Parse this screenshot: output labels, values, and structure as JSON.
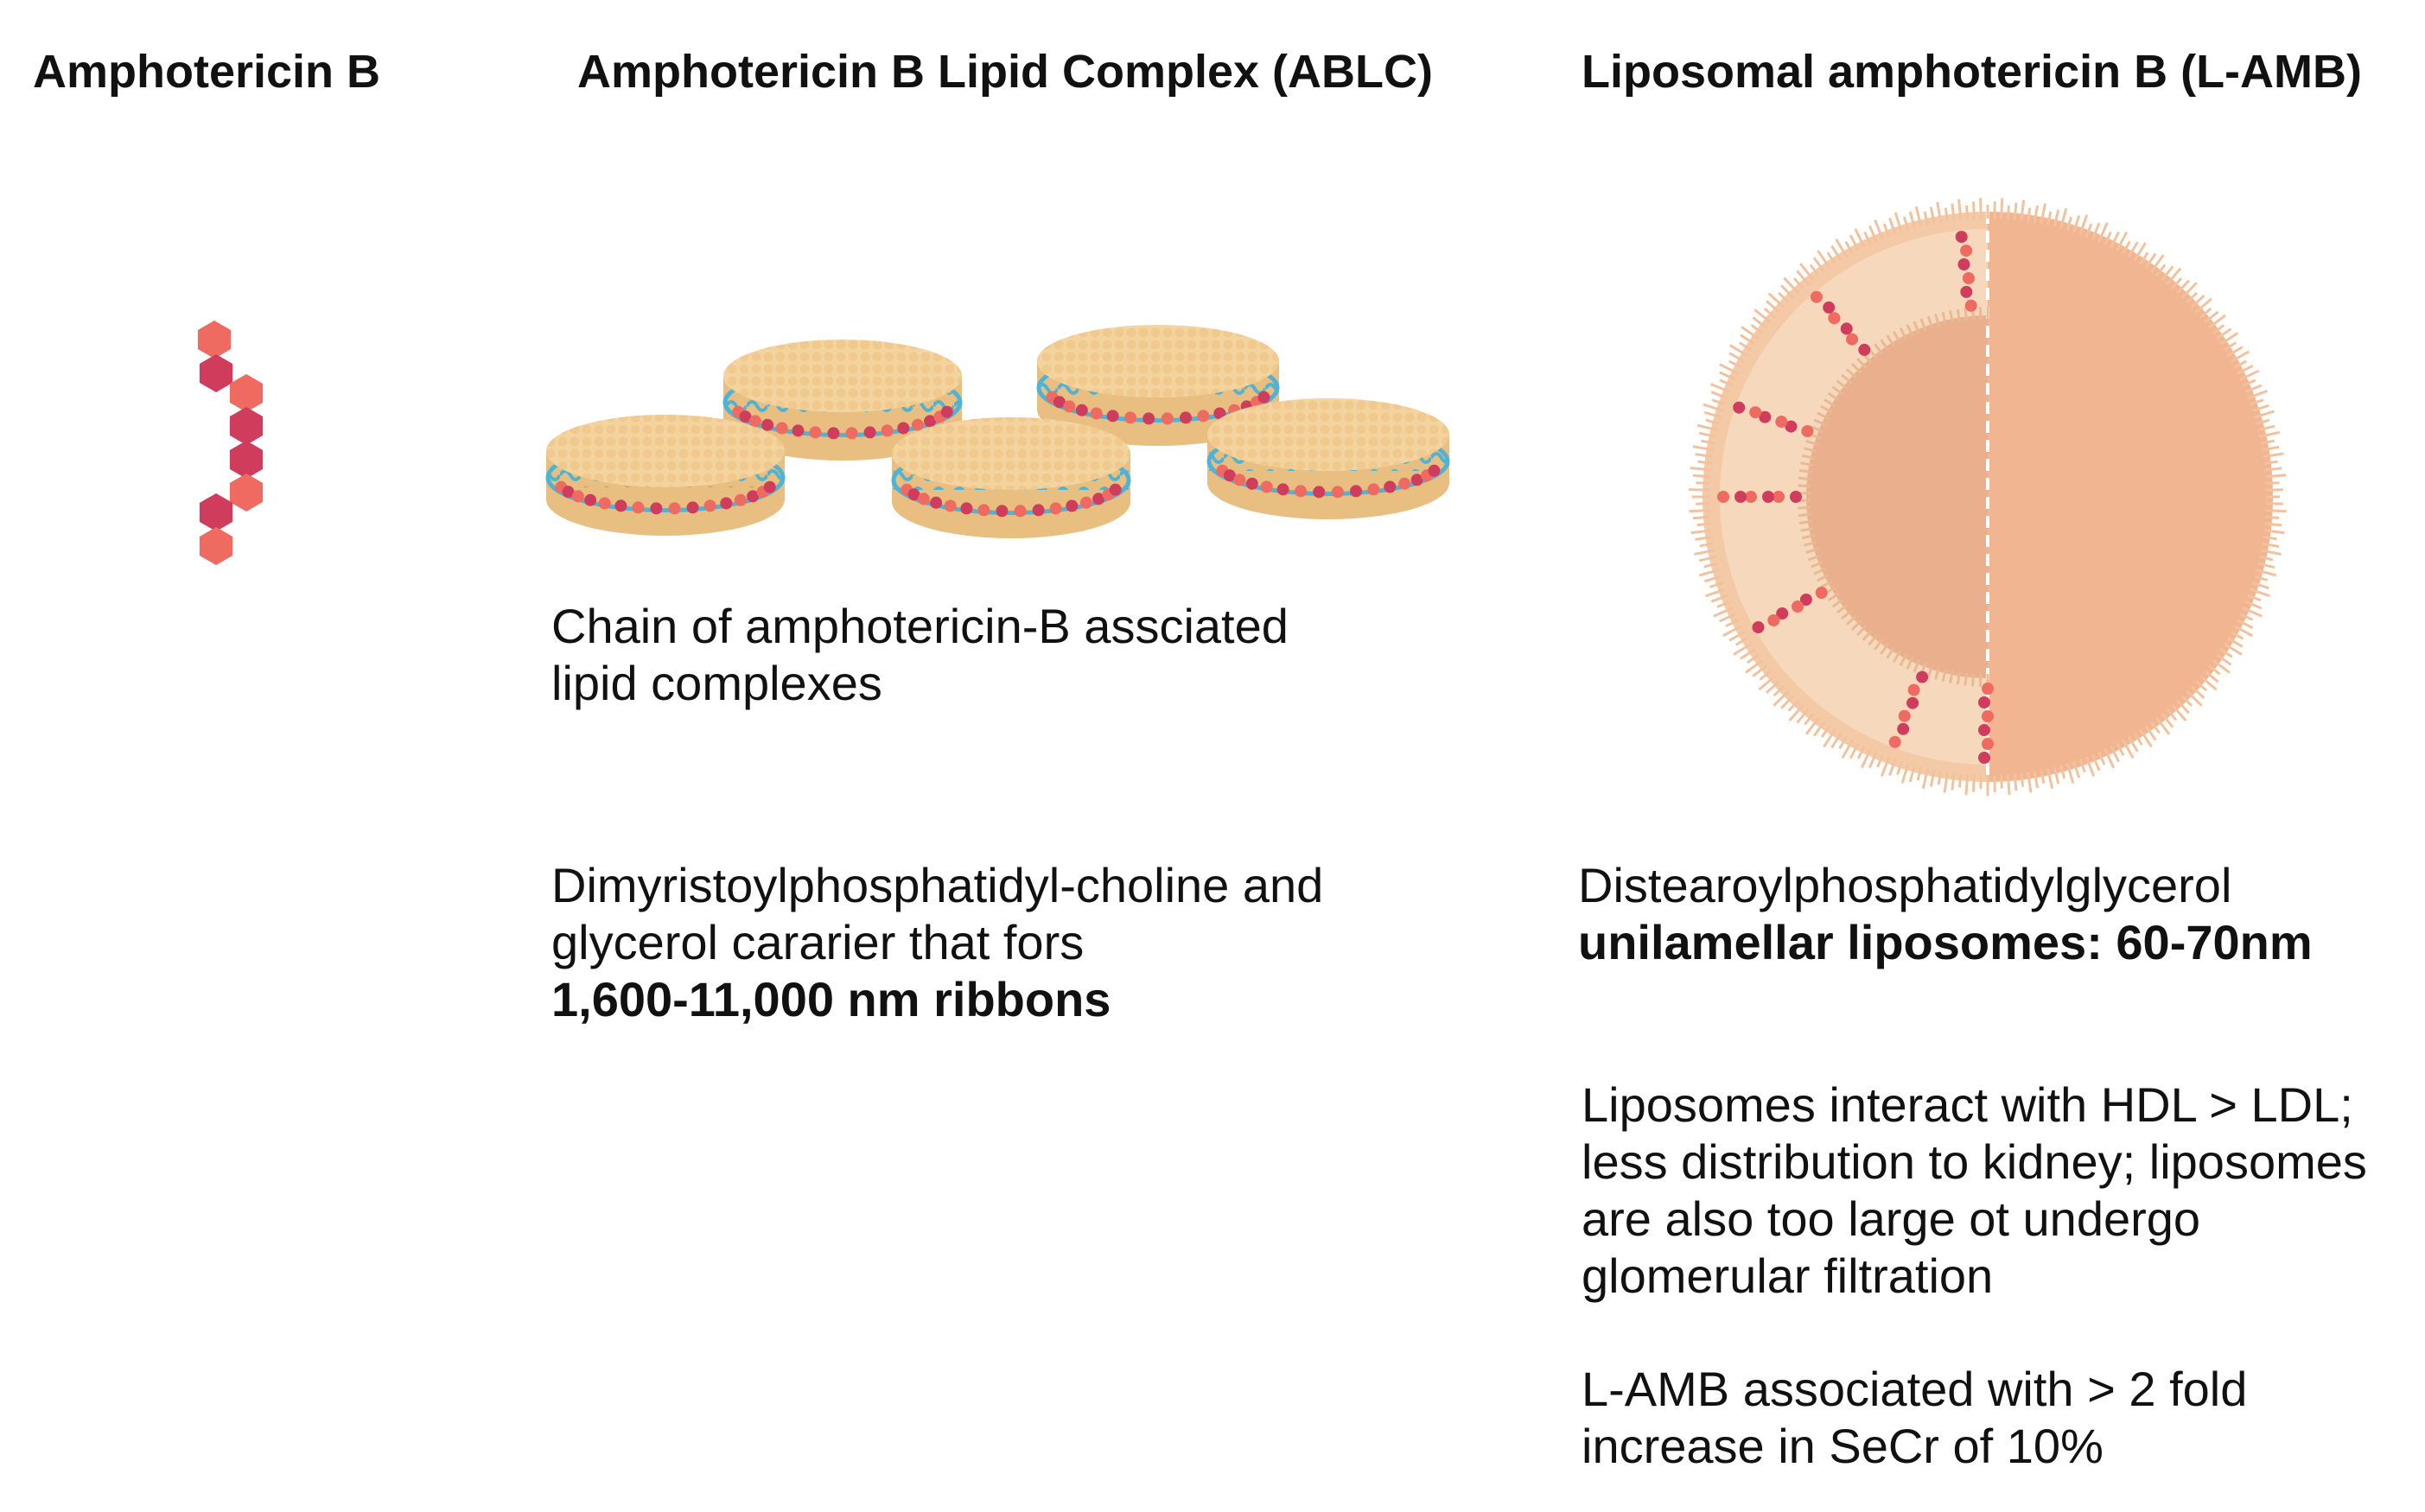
{
  "titles": {
    "amb": "Amphotericin B",
    "ablc": "Amphotericin B Lipid Complex (ABLC)",
    "lamb": "Liposomal amphotericin B (L-AMB)"
  },
  "ablc": {
    "caption": [
      "Chain of amphotericin-B assciated",
      "lipid complexes"
    ],
    "carrier_line1": "Dimyristoylphosphatidyl-choline and",
    "carrier_line2": "glycerol cararier that fors",
    "carrier_bold": "1,600-11,000 nm ribbons"
  },
  "lamb": {
    "carrier_line1": "Distearoylphosphatidylglycerol",
    "carrier_bold": "unilamellar liposomes: 60-70nm",
    "interaction": [
      "Liposomes interact with HDL > LDL;",
      "less distribution to kidney; liposomes",
      "are also too large ot undergo",
      "glomerular filtration"
    ],
    "secr": [
      "L-AMB associated with > 2 fold",
      "increase in SeCr of 10%"
    ]
  },
  "colors": {
    "hex_dark": "#cf3c5c",
    "hex_light": "#ef6a60",
    "disc_face": "#f4d49e",
    "disc_edge": "#e8bf80",
    "lipid_tail": "#4fb3d4",
    "liposome_outer": "#f6d9bd",
    "liposome_inner": "#eab08e",
    "liposome_half": "#f2b592"
  }
}
